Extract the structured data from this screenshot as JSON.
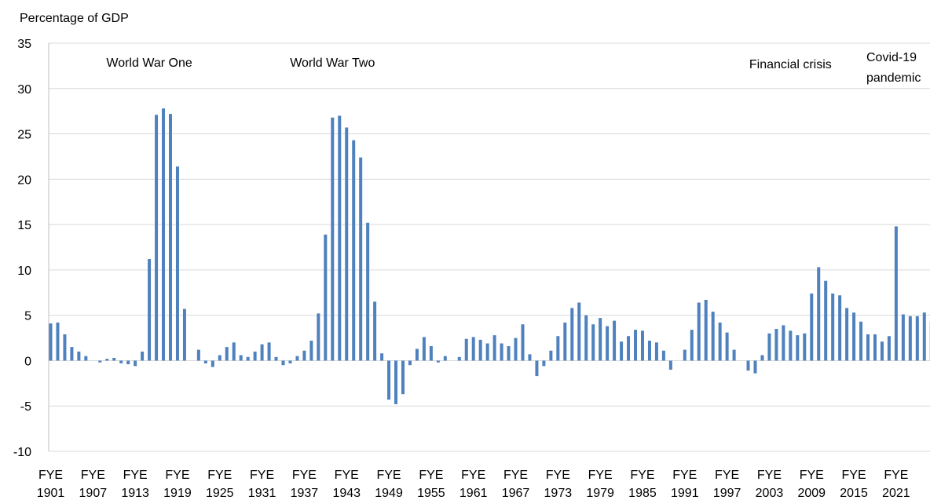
{
  "chart_data": {
    "type": "bar",
    "ylabel": "Percentage of GDP",
    "ylim": [
      -10,
      35
    ],
    "yticks": [
      35,
      30,
      25,
      20,
      15,
      10,
      5,
      0,
      -5,
      -10
    ],
    "grid": true,
    "bar_color": "#4e81bd",
    "x_start_year": 1901,
    "xtick_prefix": "FYE",
    "xticks": [
      "1901",
      "1907",
      "1913",
      "1919",
      "1925",
      "1931",
      "1937",
      "1943",
      "1949",
      "1955",
      "1961",
      "1967",
      "1973",
      "1979",
      "1985",
      "1991",
      "1997",
      "2003",
      "2009",
      "2015",
      "2021"
    ],
    "annotations": [
      {
        "lines": [
          "World War One"
        ],
        "year": 1915
      },
      {
        "lines": [
          "World War Two"
        ],
        "year": 1941
      },
      {
        "lines": [
          "Financial crisis"
        ],
        "year": 2006
      },
      {
        "lines": [
          "Covid-19",
          "pandemic"
        ],
        "year": 2022
      }
    ],
    "values": [
      4.1,
      4.2,
      2.9,
      1.5,
      1.0,
      0.5,
      0.0,
      -0.2,
      0.2,
      0.3,
      -0.3,
      -0.4,
      -0.6,
      1.0,
      11.2,
      27.1,
      27.8,
      27.2,
      21.4,
      5.7,
      0.0,
      1.2,
      -0.3,
      -0.7,
      0.6,
      1.5,
      2.0,
      0.6,
      0.4,
      1.0,
      1.8,
      2.0,
      0.4,
      -0.5,
      -0.3,
      0.5,
      1.1,
      2.2,
      5.2,
      13.9,
      26.8,
      27.0,
      25.7,
      24.3,
      22.4,
      15.2,
      6.5,
      0.8,
      -4.3,
      -4.8,
      -3.7,
      -0.5,
      1.3,
      2.6,
      1.6,
      -0.2,
      0.5,
      0.0,
      0.4,
      2.4,
      2.6,
      2.3,
      1.9,
      2.8,
      1.9,
      1.6,
      2.5,
      4.0,
      0.7,
      -1.7,
      -0.6,
      1.1,
      2.7,
      4.2,
      5.8,
      6.4,
      5.0,
      4.0,
      4.7,
      3.8,
      4.4,
      2.1,
      2.7,
      3.4,
      3.3,
      2.2,
      2.0,
      1.1,
      -1.0,
      0.0,
      1.2,
      3.4,
      6.4,
      6.7,
      5.4,
      4.2,
      3.1,
      1.2,
      0.0,
      -1.1,
      -1.4,
      0.6,
      3.0,
      3.5,
      3.9,
      3.3,
      2.8,
      3.0,
      7.4,
      10.3,
      8.8,
      7.4,
      7.2,
      5.8,
      5.3,
      4.3,
      2.9,
      2.9,
      2.1,
      2.7,
      14.8,
      5.1,
      4.9,
      4.9,
      5.3,
      4.3
    ]
  }
}
